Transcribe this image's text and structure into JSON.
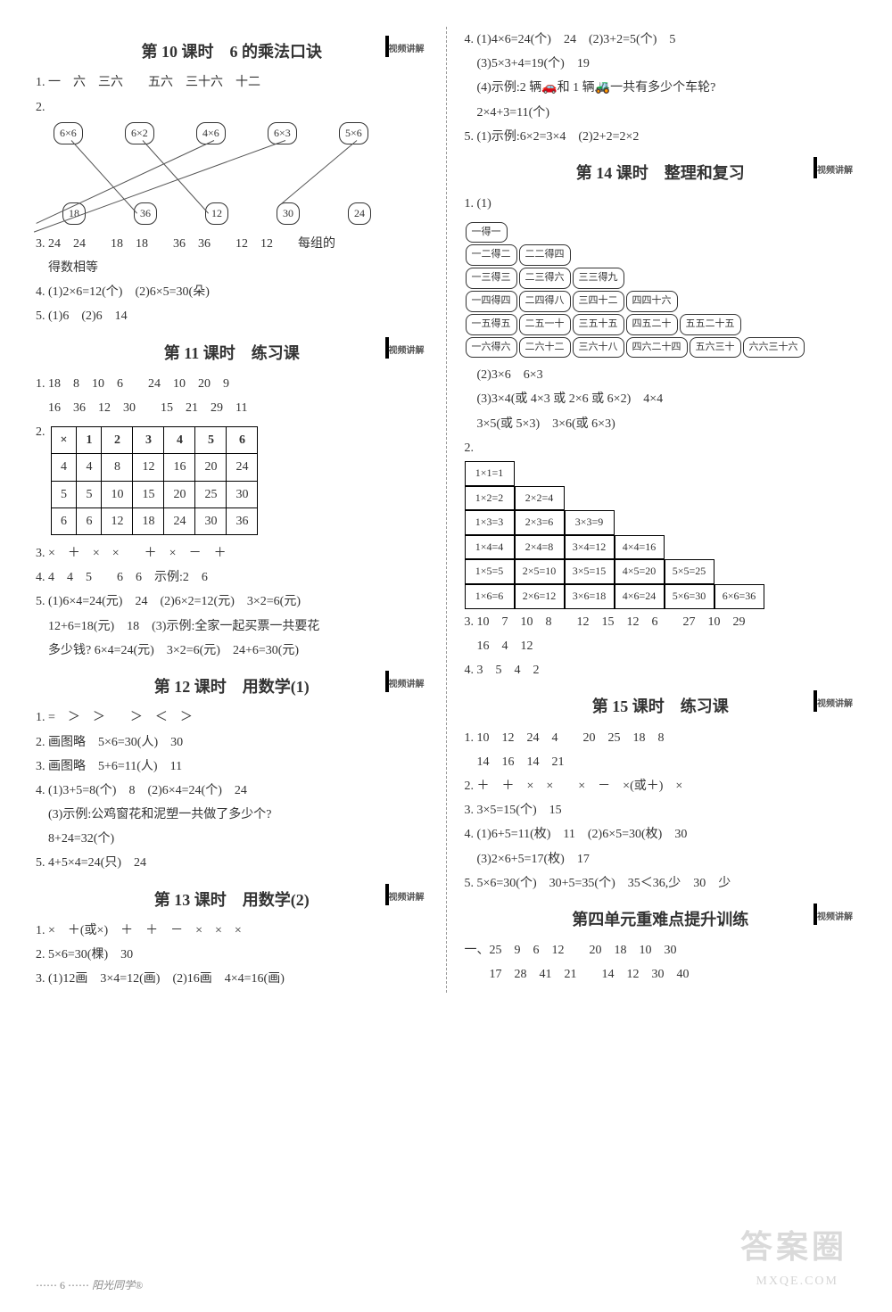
{
  "qr_label": "视频讲解",
  "left": {
    "l10": {
      "title": "第 10 课时　6 的乘法口诀",
      "q1": "1. 一　六　三六　　五六　三十六　十二",
      "q2_label": "2.",
      "q2_top": [
        "6×6",
        "6×2",
        "4×6",
        "6×3",
        "5×6"
      ],
      "q2_bot": [
        "18",
        "36",
        "12",
        "30",
        "24"
      ],
      "q3": "3. 24　24　　18　18　　36　36　　12　12　　每组的",
      "q3b": "　得数相等",
      "q4": "4. (1)2×6=12(个)　(2)6×5=30(朵)",
      "q5": "5. (1)6　(2)6　14"
    },
    "l11": {
      "title": "第 11 课时　练习课",
      "q1a": "1. 18　8　10　6　　24　10　20　9",
      "q1b": "　16　36　12　30　　15　21　29　11",
      "q2_label": "2.",
      "q2_head": [
        "×",
        "1",
        "2",
        "3",
        "4",
        "5",
        "6"
      ],
      "q2_rows": [
        [
          "4",
          "4",
          "8",
          "12",
          "16",
          "20",
          "24"
        ],
        [
          "5",
          "5",
          "10",
          "15",
          "20",
          "25",
          "30"
        ],
        [
          "6",
          "6",
          "12",
          "18",
          "24",
          "30",
          "36"
        ]
      ],
      "q3": "3. ×　＋　×　×　　＋　×　－　＋",
      "q4": "4. 4　4　5　　6　6　示例:2　6",
      "q5a": "5. (1)6×4=24(元)　24　(2)6×2=12(元)　3×2=6(元)",
      "q5b": "　12+6=18(元)　18　(3)示例:全家一起买票一共要花",
      "q5c": "　多少钱? 6×4=24(元)　3×2=6(元)　24+6=30(元)"
    },
    "l12": {
      "title": "第 12 课时　用数学(1)",
      "q1": "1. =　＞　＞　　＞　＜　＞",
      "q2": "2. 画图略　5×6=30(人)　30",
      "q3": "3. 画图略　5+6=11(人)　11",
      "q4a": "4. (1)3+5=8(个)　8　(2)6×4=24(个)　24",
      "q4b": "　(3)示例:公鸡窗花和泥塑一共做了多少个?",
      "q4c": "　8+24=32(个)",
      "q5": "5. 4+5×4=24(只)　24"
    },
    "l13": {
      "title": "第 13 课时　用数学(2)",
      "q1": "1. ×　＋(或×)　＋　＋　－　×　×　×",
      "q2": "2. 5×6=30(棵)　30",
      "q3": "3. (1)12画　3×4=12(画)　(2)16画　4×4=16(画)"
    }
  },
  "right": {
    "top": {
      "q4a": "4. (1)4×6=24(个)　24　(2)3+2=5(个)　5",
      "q4b": "　(3)5×3+4=19(个)　19",
      "q4c": "　(4)示例:2 辆🚗和 1 辆🚜一共有多少个车轮?",
      "q4d": "　2×4+3=11(个)",
      "q5": "5. (1)示例:6×2=3×4　(2)2+2=2×2"
    },
    "l14": {
      "title": "第 14 课时　整理和复习",
      "q1_label": "1. (1)",
      "stair": [
        [
          "一得一"
        ],
        [
          "一二得二",
          "二二得四"
        ],
        [
          "一三得三",
          "二三得六",
          "三三得九"
        ],
        [
          "一四得四",
          "二四得八",
          "三四十二",
          "四四十六"
        ],
        [
          "一五得五",
          "二五一十",
          "三五十五",
          "四五二十",
          "五五二十五"
        ],
        [
          "一六得六",
          "二六十二",
          "三六十八",
          "四六二十四",
          "五六三十",
          "六六三十六"
        ]
      ],
      "q1_2": "　(2)3×6　6×3",
      "q1_3": "　(3)3×4(或 4×3 或 2×6 或 6×2)　4×4",
      "q1_3b": "　3×5(或 5×3)　3×6(或 6×3)",
      "q2_label": "2.",
      "q2_rows": [
        [
          "1×1=1"
        ],
        [
          "1×2=2",
          "2×2=4"
        ],
        [
          "1×3=3",
          "2×3=6",
          "3×3=9"
        ],
        [
          "1×4=4",
          "2×4=8",
          "3×4=12",
          "4×4=16"
        ],
        [
          "1×5=5",
          "2×5=10",
          "3×5=15",
          "4×5=20",
          "5×5=25"
        ],
        [
          "1×6=6",
          "2×6=12",
          "3×6=18",
          "4×6=24",
          "5×6=30",
          "6×6=36"
        ]
      ],
      "q3a": "3. 10　7　10　8　　12　15　12　6　　27　10　29",
      "q3b": "　16　4　12",
      "q4": "4. 3　5　4　2"
    },
    "l15": {
      "title": "第 15 课时　练习课",
      "q1a": "1. 10　12　24　4　　20　25　18　8",
      "q1b": "　14　16　14　21",
      "q2": "2. ＋　＋　×　×　　×　－　×(或＋)　×",
      "q3": "3. 3×5=15(个)　15",
      "q4a": "4. (1)6+5=11(枚)　11　(2)6×5=30(枚)　30",
      "q4b": "　(3)2×6+5=17(枚)　17",
      "q5": "5. 5×6=30(个)　30+5=35(个)　35＜36,少　30　少"
    },
    "unit4": {
      "title": "第四单元重难点提升训练",
      "q1a": "一、25　9　6　12　　20　18　10　30",
      "q1b": "　　17　28　41　21　　14　12　30　40"
    }
  },
  "footer": {
    "page": "6",
    "brand": "阳光同学®"
  },
  "watermark": "答案圈",
  "watermark_sub": "MXQE.COM"
}
